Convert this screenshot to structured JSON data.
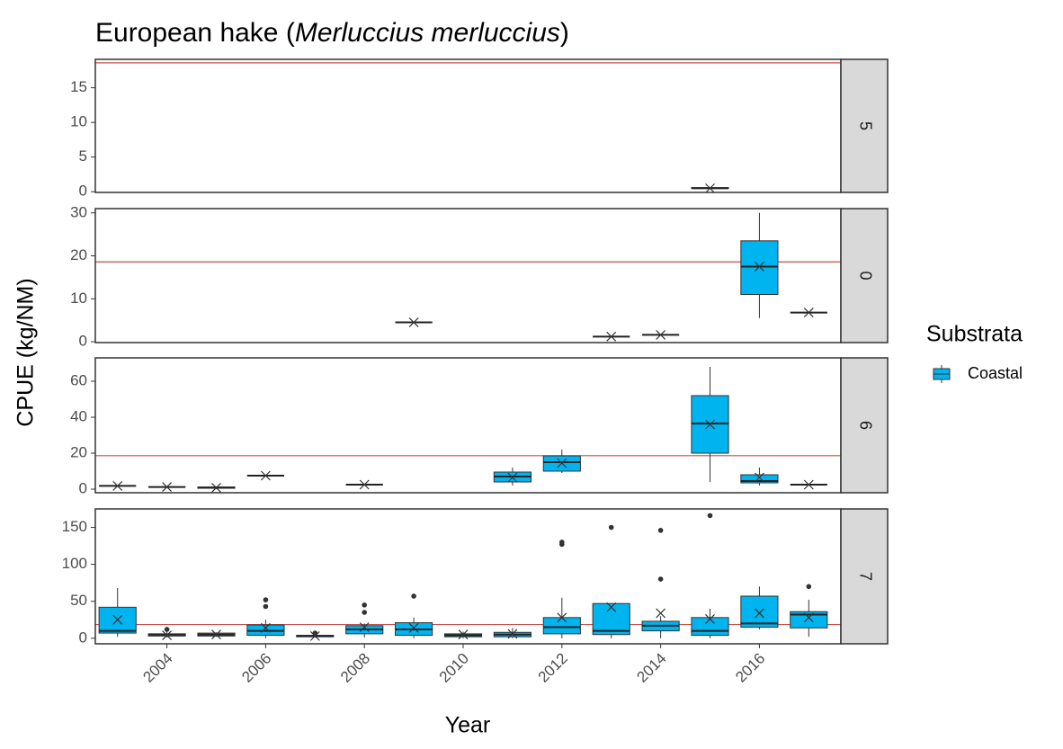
{
  "chart_data": {
    "type": "box",
    "title": [
      "European hake (",
      "Merluccius merluccius",
      ")"
    ],
    "x_label": "Year",
    "y_label": "CPUE (kg/NM)",
    "legend_title": "Substrata",
    "series_name": "Coastal",
    "color": "#00b4ef",
    "reference_line": 18.6,
    "reference_color": "#c0504d",
    "xlim": [
      2002.55,
      2017.65
    ],
    "xticks": [
      2004,
      2006,
      2008,
      2010,
      2012,
      2014,
      2016
    ],
    "facets": [
      {
        "label": "5",
        "ylim": [
          -0.1,
          19.1
        ],
        "yticks": [
          0,
          5,
          10,
          15
        ],
        "boxes": [
          {
            "x": 2015,
            "low": 0.4,
            "q1": 0.5,
            "median": 0.5,
            "q3": 0.6,
            "high": 0.7,
            "mean": 0.5
          }
        ]
      },
      {
        "label": "0",
        "ylim": [
          -0.2,
          31
        ],
        "yticks": [
          0,
          10,
          20,
          30
        ],
        "boxes": [
          {
            "x": 2009,
            "low": 4.5,
            "q1": 4.5,
            "median": 4.5,
            "q3": 4.5,
            "high": 4.5,
            "mean": 4.5
          },
          {
            "x": 2013,
            "low": 1.2,
            "q1": 1.2,
            "median": 1.2,
            "q3": 1.2,
            "high": 1.2,
            "mean": 1.2
          },
          {
            "x": 2014,
            "low": 1.6,
            "q1": 1.6,
            "median": 1.6,
            "q3": 1.6,
            "high": 1.6,
            "mean": 1.6
          },
          {
            "x": 2016,
            "low": 5.5,
            "q1": 11,
            "median": 17.5,
            "q3": 23.5,
            "high": 30,
            "mean": 17.5
          },
          {
            "x": 2017,
            "low": 6.8,
            "q1": 6.8,
            "median": 6.8,
            "q3": 6.8,
            "high": 6.8,
            "mean": 6.8
          }
        ]
      },
      {
        "label": "6",
        "ylim": [
          -2,
          73
        ],
        "yticks": [
          0,
          20,
          40,
          60
        ],
        "boxes": [
          {
            "x": 2003,
            "low": 1.8,
            "q1": 1.8,
            "median": 1.8,
            "q3": 1.8,
            "high": 1.8,
            "mean": 1.8
          },
          {
            "x": 2004,
            "low": 1.2,
            "q1": 1.2,
            "median": 1.2,
            "q3": 1.2,
            "high": 1.2,
            "mean": 1.2
          },
          {
            "x": 2005,
            "low": 0,
            "q1": 0.5,
            "median": 0.8,
            "q3": 1.2,
            "high": 1.5,
            "mean": 0.8
          },
          {
            "x": 2006,
            "low": 7.5,
            "q1": 7.5,
            "median": 7.5,
            "q3": 7.5,
            "high": 7.5,
            "mean": 7.5
          },
          {
            "x": 2008,
            "low": 2.5,
            "q1": 2.5,
            "median": 2.5,
            "q3": 2.5,
            "high": 2.5,
            "mean": 2.5
          },
          {
            "x": 2011,
            "low": 2,
            "q1": 4,
            "median": 7,
            "q3": 9.5,
            "high": 12,
            "mean": 6.5
          },
          {
            "x": 2012,
            "low": 9,
            "q1": 10,
            "median": 15,
            "q3": 18.5,
            "high": 22,
            "mean": 14.5
          },
          {
            "x": 2015,
            "low": 4,
            "q1": 20,
            "median": 36.5,
            "q3": 52,
            "high": 68,
            "mean": 36
          },
          {
            "x": 2016,
            "low": 2,
            "q1": 3.5,
            "median": 4.5,
            "q3": 8,
            "high": 12,
            "mean": 6.5
          },
          {
            "x": 2017,
            "low": 2.5,
            "q1": 2.5,
            "median": 2.5,
            "q3": 2.5,
            "high": 2.5,
            "mean": 2.5
          }
        ]
      },
      {
        "label": "7",
        "ylim": [
          -7.5,
          175
        ],
        "yticks": [
          0,
          50,
          100,
          150
        ],
        "boxes": [
          {
            "x": 2003,
            "low": 2,
            "q1": 7,
            "median": 10,
            "q3": 42,
            "high": 68,
            "mean": 25
          },
          {
            "x": 2004,
            "low": 1,
            "q1": 3,
            "median": 5,
            "q3": 6,
            "high": 9,
            "mean": 4,
            "outliers": [
              12
            ]
          },
          {
            "x": 2005,
            "low": 2,
            "q1": 3,
            "median": 5,
            "q3": 7,
            "high": 8,
            "mean": 5
          },
          {
            "x": 2006,
            "low": 0,
            "q1": 4,
            "median": 10,
            "q3": 18,
            "high": 25,
            "mean": 14,
            "outliers": [
              43,
              52
            ]
          },
          {
            "x": 2007,
            "low": 1,
            "q1": 2,
            "median": 3,
            "q3": 4,
            "high": 5,
            "mean": 3,
            "outliers": [
              7
            ]
          },
          {
            "x": 2008,
            "low": 1,
            "q1": 6,
            "median": 12,
            "q3": 17,
            "high": 20,
            "mean": 15,
            "outliers": [
              35,
              45
            ]
          },
          {
            "x": 2009,
            "low": 0,
            "q1": 4,
            "median": 12,
            "q3": 21,
            "high": 28,
            "mean": 14,
            "outliers": [
              57
            ]
          },
          {
            "x": 2010,
            "low": 0,
            "q1": 2,
            "median": 4,
            "q3": 6,
            "high": 9,
            "mean": 5
          },
          {
            "x": 2011,
            "low": 0,
            "q1": 2,
            "median": 5,
            "q3": 8,
            "high": 14,
            "mean": 6
          },
          {
            "x": 2012,
            "low": 0,
            "q1": 6,
            "median": 15,
            "q3": 28,
            "high": 55,
            "mean": 28,
            "outliers": [
              127,
              130
            ]
          },
          {
            "x": 2013,
            "low": 0,
            "q1": 5,
            "median": 10,
            "q3": 47,
            "high": 47,
            "mean": 42,
            "outliers": [
              150
            ]
          },
          {
            "x": 2014,
            "low": 0,
            "q1": 10,
            "median": 17,
            "q3": 23,
            "high": 30,
            "mean": 34,
            "outliers": [
              80,
              146
            ]
          },
          {
            "x": 2015,
            "low": 0,
            "q1": 4,
            "median": 10,
            "q3": 28,
            "high": 40,
            "mean": 26,
            "outliers": [
              166
            ]
          },
          {
            "x": 2016,
            "low": 12,
            "q1": 15,
            "median": 20,
            "q3": 57,
            "high": 70,
            "mean": 34
          },
          {
            "x": 2017,
            "low": 2,
            "q1": 14,
            "median": 32,
            "q3": 36,
            "high": 52,
            "mean": 28,
            "outliers": [
              70
            ]
          }
        ]
      }
    ]
  }
}
